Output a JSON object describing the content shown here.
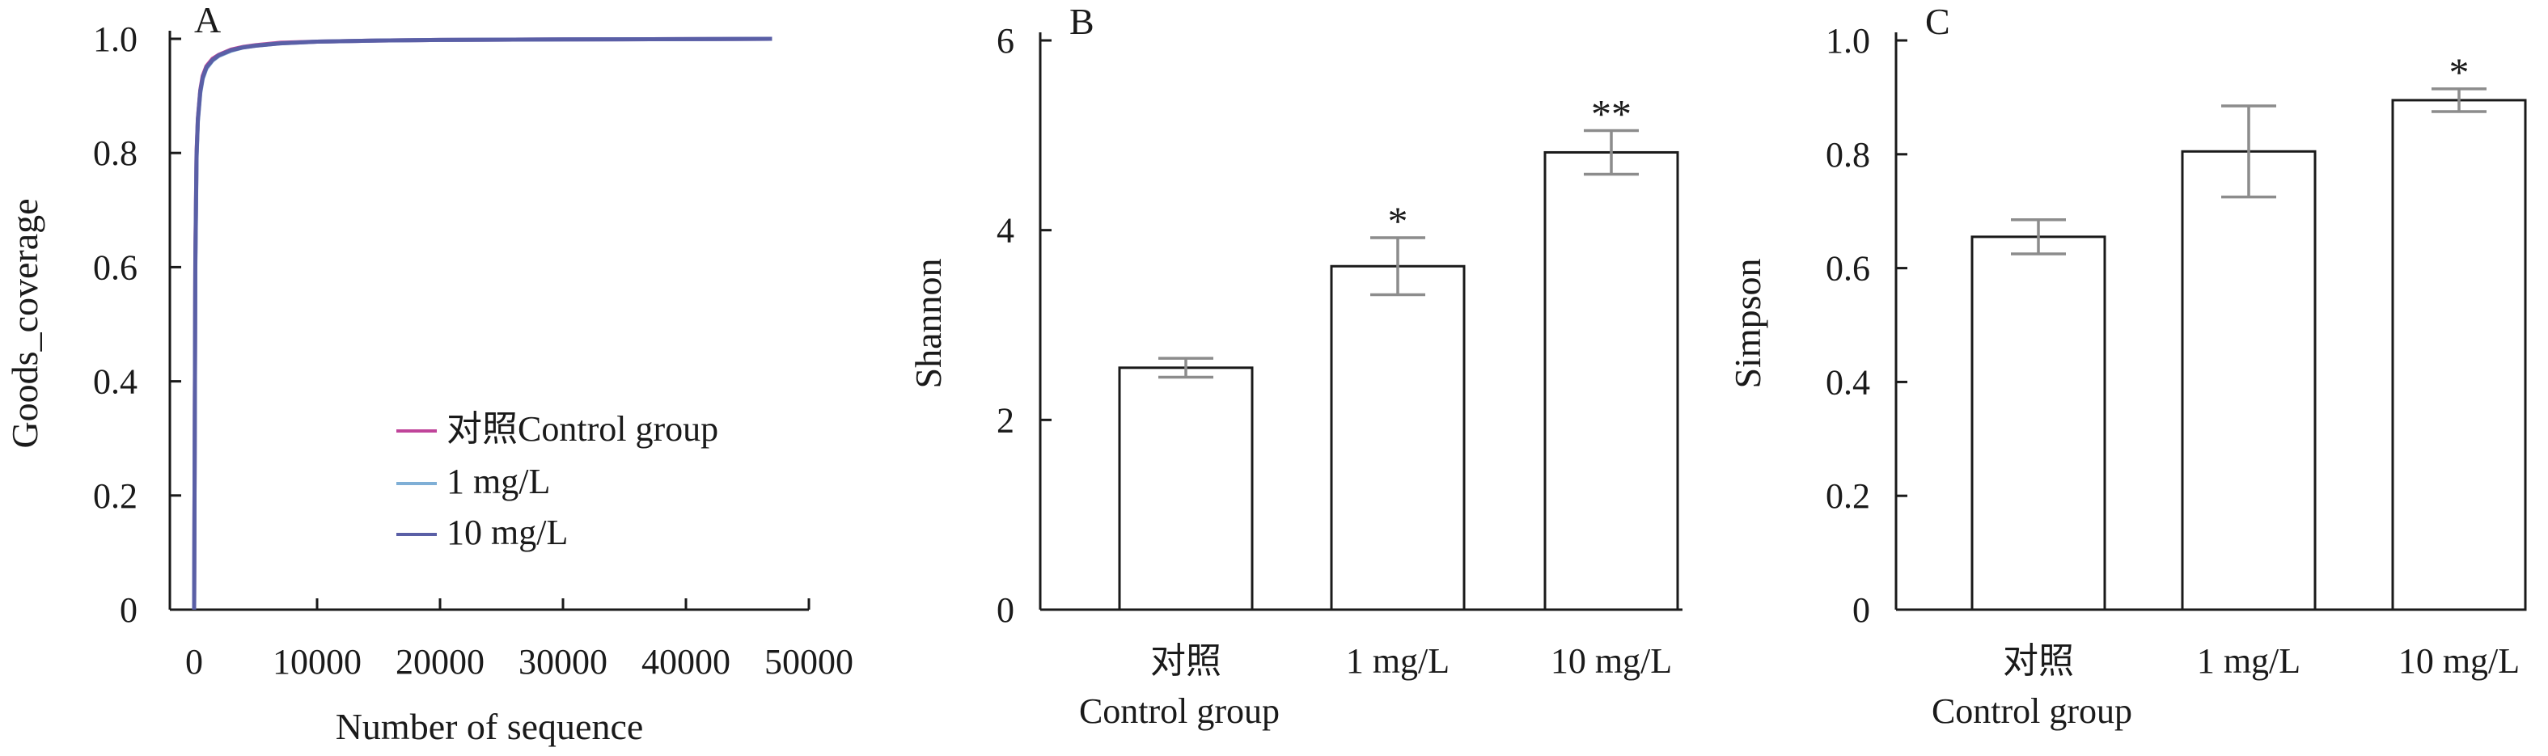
{
  "chart_data": [
    {
      "type": "line",
      "panel_label": "A",
      "title": "",
      "xlabel": "Number of sequence",
      "ylabel": "Goods_coverage",
      "xlim": [
        0,
        50000
      ],
      "ylim": [
        0,
        1.0
      ],
      "xticks": [
        0,
        10000,
        20000,
        30000,
        40000,
        50000
      ],
      "xtick_labels": [
        "0",
        "10000",
        "20000",
        "30000",
        "40000",
        "50000"
      ],
      "yticks": [
        0,
        0.2,
        0.4,
        0.6,
        0.8,
        1.0
      ],
      "ytick_labels": [
        "0",
        "0.2",
        "0.4",
        "0.6",
        "0.8",
        "1.0"
      ],
      "legend_position": "lower-right",
      "series": [
        {
          "name": "对照Control group",
          "color": "#c0449a",
          "x": [
            0,
            100,
            200,
            300,
            500,
            700,
            1000,
            1500,
            2000,
            3000,
            4000,
            5000,
            7000,
            10000,
            15000,
            20000,
            30000,
            40000,
            47000
          ],
          "y": [
            0,
            0.62,
            0.8,
            0.86,
            0.91,
            0.935,
            0.952,
            0.965,
            0.972,
            0.981,
            0.986,
            0.989,
            0.993,
            0.995,
            0.997,
            0.998,
            0.999,
            0.9995,
            1.0
          ]
        },
        {
          "name": "1 mg/L",
          "color": "#7fafd6",
          "x": [
            0,
            100,
            200,
            300,
            500,
            700,
            1000,
            1500,
            2000,
            3000,
            4000,
            5000,
            7000,
            10000,
            15000,
            20000,
            30000,
            40000,
            47000
          ],
          "y": [
            0,
            0.6,
            0.79,
            0.855,
            0.905,
            0.93,
            0.948,
            0.962,
            0.97,
            0.979,
            0.985,
            0.988,
            0.992,
            0.995,
            0.997,
            0.998,
            0.999,
            0.9995,
            1.0
          ]
        },
        {
          "name": "10 mg/L",
          "color": "#5a5fa6",
          "x": [
            0,
            100,
            200,
            300,
            500,
            700,
            1000,
            1500,
            2000,
            3000,
            4000,
            5000,
            7000,
            10000,
            15000,
            20000,
            30000,
            40000,
            47000
          ],
          "y": [
            0,
            0.61,
            0.795,
            0.858,
            0.908,
            0.932,
            0.95,
            0.963,
            0.971,
            0.98,
            0.985,
            0.988,
            0.992,
            0.995,
            0.997,
            0.998,
            0.999,
            0.9995,
            1.0
          ]
        }
      ]
    },
    {
      "type": "bar",
      "panel_label": "B",
      "title": "",
      "xlabel": "",
      "ylabel": "Shannon",
      "ylim": [
        0,
        6
      ],
      "yticks": [
        0,
        2,
        4,
        6
      ],
      "ytick_labels": [
        "0",
        "2",
        "4",
        "6"
      ],
      "categories": [
        "对照|Control group",
        "1 mg/L",
        "10 mg/L"
      ],
      "category_lines": [
        [
          "对照",
          "Control group"
        ],
        [
          "1 mg/L"
        ],
        [
          "10 mg/L"
        ]
      ],
      "values": [
        2.55,
        3.62,
        4.82
      ],
      "errors": [
        0.1,
        0.3,
        0.23
      ],
      "significance": [
        "",
        "*",
        "**"
      ]
    },
    {
      "type": "bar",
      "panel_label": "C",
      "title": "",
      "xlabel": "",
      "ylabel": "Simpson",
      "ylim": [
        0,
        1.0
      ],
      "yticks": [
        0,
        0.2,
        0.4,
        0.6,
        0.8,
        1.0
      ],
      "ytick_labels": [
        "0",
        "0.2",
        "0.4",
        "0.6",
        "0.8",
        "1.0"
      ],
      "categories": [
        "对照|Control group",
        "1 mg/L",
        "10 mg/L"
      ],
      "category_lines": [
        [
          "对照",
          "Control group"
        ],
        [
          "1 mg/L"
        ],
        [
          "10 mg/L"
        ]
      ],
      "values": [
        0.655,
        0.805,
        0.895
      ],
      "errors": [
        0.03,
        0.08,
        0.02
      ],
      "significance": [
        "",
        "",
        "*"
      ]
    }
  ]
}
